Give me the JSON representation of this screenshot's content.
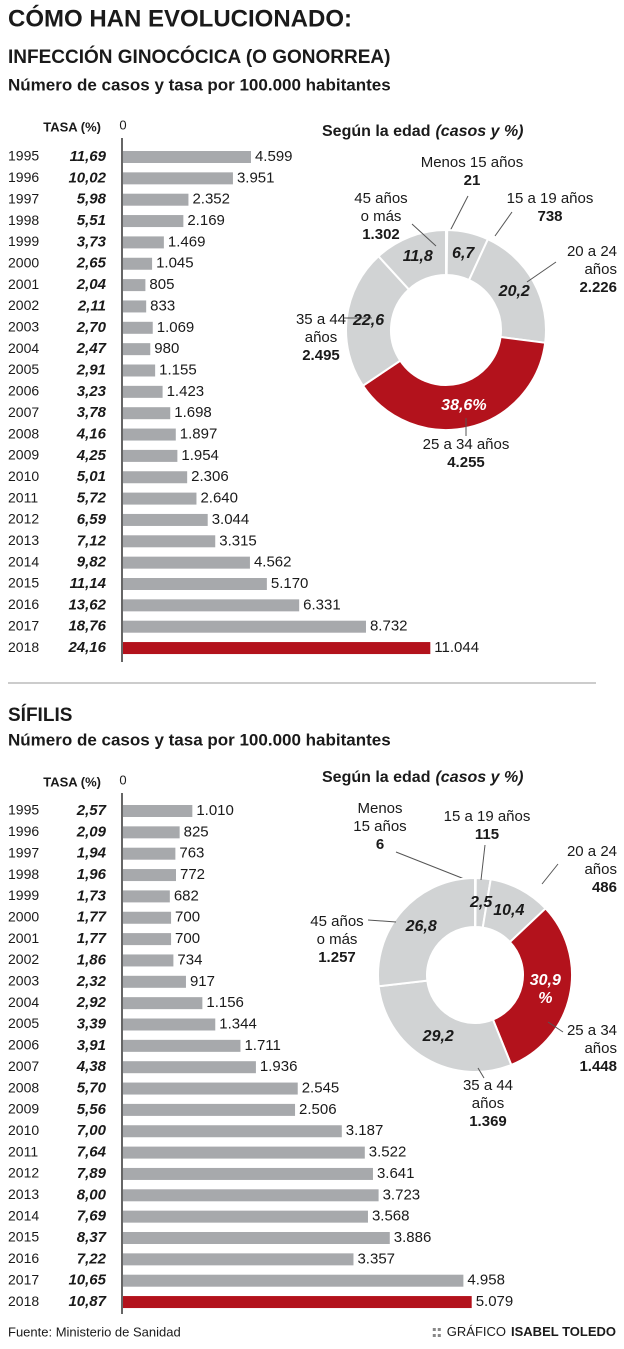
{
  "header": {
    "title": "CÓMO HAN EVOLUCIONADO:"
  },
  "chart_data": [
    {
      "type": "bar",
      "orientation": "horizontal",
      "title": "INFECCIÓN GINOCÓCICA (O GONORREA)",
      "subtitle": "Número de casos y tasa por 100.000 habitantes",
      "rate_header": "TASA (%)",
      "categories": [
        "1995",
        "1996",
        "1997",
        "1998",
        "1999",
        "2000",
        "2001",
        "2002",
        "2003",
        "2004",
        "2005",
        "2006",
        "2007",
        "2008",
        "2009",
        "2010",
        "2011",
        "2012",
        "2013",
        "2014",
        "2015",
        "2016",
        "2017",
        "2018"
      ],
      "rates": [
        "11,69",
        "10,02",
        "5,98",
        "5,51",
        "3,73",
        "2,65",
        "2,04",
        "2,11",
        "2,70",
        "2,47",
        "2,91",
        "3,23",
        "3,78",
        "4,16",
        "4,25",
        "5,01",
        "5,72",
        "6,59",
        "7,12",
        "9,82",
        "11,14",
        "13,62",
        "18,76",
        "24,16"
      ],
      "values": [
        4599,
        3951,
        2352,
        2169,
        1469,
        1045,
        805,
        833,
        1069,
        980,
        1155,
        1423,
        1698,
        1897,
        1954,
        2306,
        2640,
        3044,
        3315,
        4562,
        5170,
        6331,
        8732,
        11044
      ],
      "value_labels": [
        "4.599",
        "3.951",
        "2.352",
        "2.169",
        "1.469",
        "1.045",
        "805",
        "833",
        "1.069",
        "980",
        "1.155",
        "1.423",
        "1.698",
        "1.897",
        "1.954",
        "2.306",
        "2.640",
        "3.044",
        "3.315",
        "4.562",
        "5.170",
        "6.331",
        "8.732",
        "11.044"
      ],
      "colors": [
        "#a7a9ac",
        "#a7a9ac",
        "#a7a9ac",
        "#a7a9ac",
        "#a7a9ac",
        "#a7a9ac",
        "#a7a9ac",
        "#a7a9ac",
        "#a7a9ac",
        "#a7a9ac",
        "#a7a9ac",
        "#a7a9ac",
        "#a7a9ac",
        "#a7a9ac",
        "#a7a9ac",
        "#a7a9ac",
        "#a7a9ac",
        "#a7a9ac",
        "#a7a9ac",
        "#a7a9ac",
        "#a7a9ac",
        "#a7a9ac",
        "#a7a9ac",
        "#b3121c"
      ],
      "xlim": [
        0,
        11500
      ],
      "xticks": [
        0
      ]
    },
    {
      "type": "donut",
      "title": "Según la edad",
      "title_note": "(casos y %)",
      "categories": [
        "Menos 15 años",
        "15 a 19 años",
        "20 a 24 años",
        "25 a 34 años",
        "35 a 44 años",
        "45 años o más"
      ],
      "values": [
        21,
        738,
        2226,
        4255,
        2495,
        1302
      ],
      "value_labels": [
        "21",
        "738",
        "2.226",
        "4.255",
        "2.495",
        "1.302"
      ],
      "share_labels": [
        null,
        "6,7",
        "20,2",
        "38,6%",
        "22,6",
        "11,8"
      ],
      "colors": [
        "#d1d3d4",
        "#d1d3d4",
        "#d1d3d4",
        "#b3121c",
        "#d1d3d4",
        "#d1d3d4"
      ]
    },
    {
      "type": "bar",
      "orientation": "horizontal",
      "title": "SÍFILIS",
      "subtitle": "Número de casos y tasa por 100.000 habitantes",
      "rate_header": "TASA (%)",
      "categories": [
        "1995",
        "1996",
        "1997",
        "1998",
        "1999",
        "2000",
        "2001",
        "2002",
        "2003",
        "2004",
        "2005",
        "2006",
        "2007",
        "2008",
        "2009",
        "2010",
        "2011",
        "2012",
        "2013",
        "2014",
        "2015",
        "2016",
        "2017",
        "2018"
      ],
      "rates": [
        "2,57",
        "2,09",
        "1,94",
        "1,96",
        "1,73",
        "1,77",
        "1,77",
        "1,86",
        "2,32",
        "2,92",
        "3,39",
        "3,91",
        "4,38",
        "5,70",
        "5,56",
        "7,00",
        "7,64",
        "7,89",
        "8,00",
        "7,69",
        "8,37",
        "7,22",
        "10,65",
        "10,87"
      ],
      "values": [
        1010,
        825,
        763,
        772,
        682,
        700,
        700,
        734,
        917,
        1156,
        1344,
        1711,
        1936,
        2545,
        2506,
        3187,
        3522,
        3641,
        3723,
        3568,
        3886,
        3357,
        4958,
        5079
      ],
      "value_labels": [
        "1.010",
        "825",
        "763",
        "772",
        "682",
        "700",
        "700",
        "734",
        "917",
        "1.156",
        "1.344",
        "1.711",
        "1.936",
        "2.545",
        "2.506",
        "3.187",
        "3.522",
        "3.641",
        "3.723",
        "3.568",
        "3.886",
        "3.357",
        "4.958",
        "5.079"
      ],
      "colors": [
        "#a7a9ac",
        "#a7a9ac",
        "#a7a9ac",
        "#a7a9ac",
        "#a7a9ac",
        "#a7a9ac",
        "#a7a9ac",
        "#a7a9ac",
        "#a7a9ac",
        "#a7a9ac",
        "#a7a9ac",
        "#a7a9ac",
        "#a7a9ac",
        "#a7a9ac",
        "#a7a9ac",
        "#a7a9ac",
        "#a7a9ac",
        "#a7a9ac",
        "#a7a9ac",
        "#a7a9ac",
        "#a7a9ac",
        "#a7a9ac",
        "#a7a9ac",
        "#b3121c"
      ],
      "xlim": [
        0,
        5200
      ],
      "xticks": [
        0
      ]
    },
    {
      "type": "donut",
      "title": "Según la edad",
      "title_note": "(casos y %)",
      "categories": [
        "Menos 15 años",
        "15 a 19 años",
        "20 a 24 años",
        "25 a 34 años",
        "35 a 44 años",
        "45 años o más"
      ],
      "values": [
        6,
        115,
        486,
        1448,
        1369,
        1257
      ],
      "value_labels": [
        "6",
        "115",
        "486",
        "1.448",
        "1.369",
        "1.257"
      ],
      "share_labels": [
        null,
        "2,5",
        "10,4",
        "30,9 %",
        "29,2",
        "26,8"
      ],
      "colors": [
        "#d1d3d4",
        "#d1d3d4",
        "#d1d3d4",
        "#b3121c",
        "#d1d3d4",
        "#d1d3d4"
      ]
    }
  ],
  "footer": {
    "source": "Fuente: Ministerio de Sanidad",
    "credit": "GRÁFICO",
    "author": "ISABEL TOLEDO"
  }
}
